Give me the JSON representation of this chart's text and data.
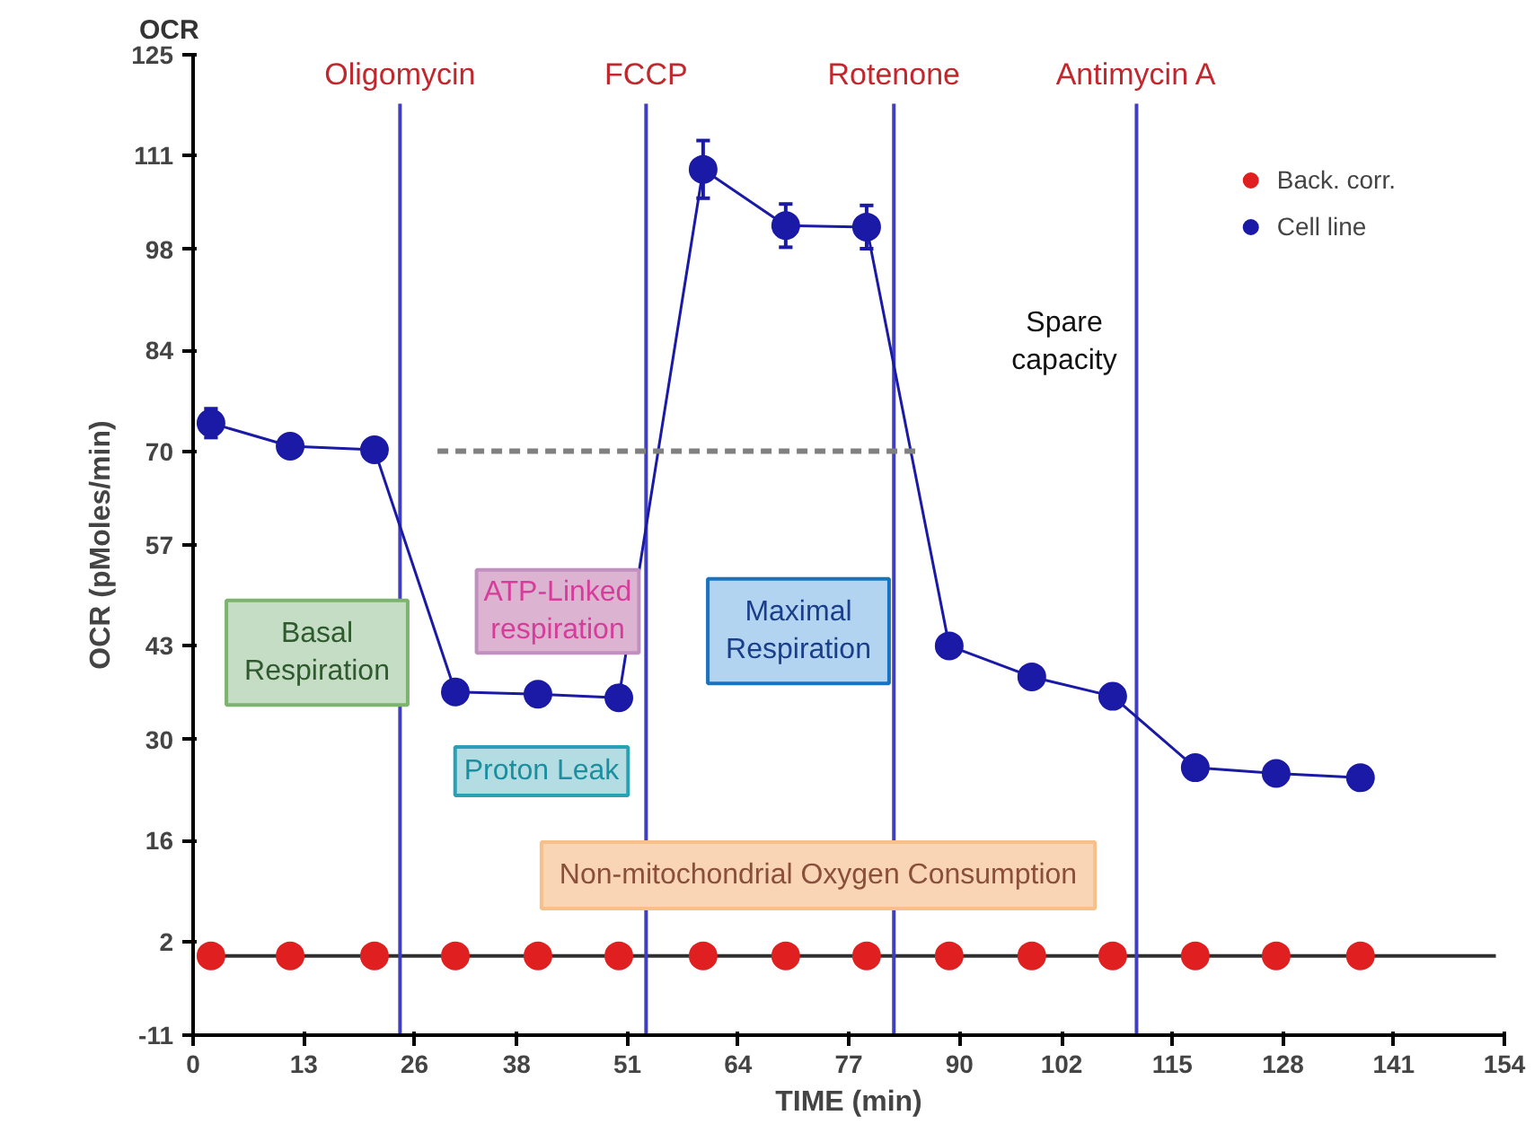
{
  "chart_data": {
    "type": "scatter",
    "title": "OCR",
    "xlabel": "TIME (min)",
    "ylabel": "OCR (pMoles/min)",
    "xlim": [
      0,
      154
    ],
    "ylim": [
      -11,
      125
    ],
    "xticks": [
      0,
      13,
      26,
      38,
      51,
      64,
      77,
      90,
      102,
      115,
      128,
      141,
      154
    ],
    "yticks": [
      -11,
      2,
      16,
      30,
      43,
      57,
      70,
      84,
      98,
      111,
      125
    ],
    "grid": false,
    "legend": "top right",
    "marker": "circle",
    "series": [
      {
        "name": "Back. corr.",
        "color": "#e02020",
        "x": [
          2.1,
          11.4,
          21.3,
          30.8,
          40.5,
          50,
          59.9,
          69.6,
          79.1,
          88.8,
          98.5,
          108,
          117.7,
          127.2,
          137.1
        ],
        "values": [
          0,
          0,
          0,
          0,
          0,
          0,
          0,
          0,
          0,
          0,
          0,
          0,
          0,
          0,
          0
        ]
      },
      {
        "name": "Cell line",
        "color": "#1a1aa6",
        "type": "line",
        "marker": "circle",
        "x": [
          2.1,
          11.4,
          21.3,
          30.8,
          40.5,
          50,
          59.9,
          69.6,
          79.1,
          88.8,
          98.5,
          108,
          117.7,
          127.2,
          137.1
        ],
        "values": [
          73.9,
          70.7,
          70.2,
          36.6,
          36.3,
          35.8,
          109.1,
          101.3,
          101.1,
          43,
          38.7,
          36,
          26.1,
          25.3,
          24.7
        ],
        "errors": [
          2,
          1.5,
          1.5,
          null,
          null,
          null,
          4,
          3,
          3,
          null,
          null,
          null,
          null,
          null,
          null
        ]
      },
      {
        "type": "line",
        "color": "#808080",
        "line_style": "dashed",
        "marker": "none",
        "x": [
          28.7,
          85.4
        ],
        "values": [
          70,
          70
        ]
      }
    ],
    "ref_lines": [
      {
        "axis": "y",
        "value": 0,
        "color": "#303030"
      },
      {
        "axis": "x",
        "value": 24.3,
        "label": "Oligomycin",
        "color": "#3f3fbf"
      },
      {
        "axis": "x",
        "value": 53.2,
        "label": "FCCP",
        "color": "#3f3fbf"
      },
      {
        "axis": "x",
        "value": 82.3,
        "label": "Rotenone",
        "color": "#3f3fbf"
      },
      {
        "axis": "x",
        "value": 110.8,
        "label": "Antimycin A",
        "color": "#3f3fbf"
      }
    ],
    "annotations": [
      "Basal\nRespiration",
      "ATP-Linked\nrespiration",
      "Proton Leak",
      "Maximal\nRespiration",
      "Non-mitochondrial Oxygen Consumption",
      "Spare\ncapacity"
    ]
  }
}
